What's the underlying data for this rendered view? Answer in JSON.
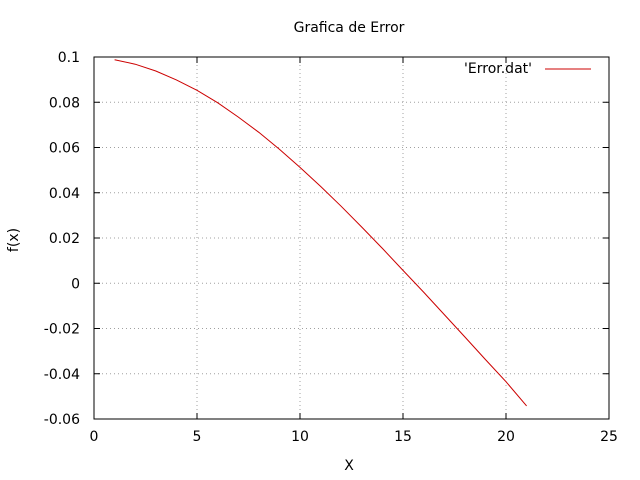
{
  "chart_data": {
    "type": "line",
    "title": "Grafica de Error",
    "xlabel": "X",
    "ylabel": "f(x)",
    "xlim": [
      0,
      25
    ],
    "ylim": [
      -0.06,
      0.1
    ],
    "grid": true,
    "legend_position": "top-right",
    "x_ticks": [
      0,
      5,
      10,
      15,
      20,
      25
    ],
    "x_tick_labels": [
      "0",
      "5",
      "10",
      "15",
      "20",
      "25"
    ],
    "y_ticks": [
      -0.06,
      -0.04,
      -0.02,
      0,
      0.02,
      0.04,
      0.06,
      0.08,
      0.1
    ],
    "y_tick_labels": [
      "-0.06",
      "-0.04",
      "-0.02",
      "0",
      "0.02",
      "0.04",
      "0.06",
      "0.08",
      "0.1"
    ],
    "series": [
      {
        "name": "'Error.dat'",
        "color": "#cc0000",
        "x": [
          1,
          2,
          3,
          4,
          5,
          6,
          7,
          8,
          9,
          10,
          11,
          12,
          13,
          14,
          15,
          16,
          17,
          18,
          19,
          20,
          21
        ],
        "y": [
          0.0988,
          0.0968,
          0.0938,
          0.0899,
          0.0853,
          0.0798,
          0.0735,
          0.0667,
          0.0592,
          0.0512,
          0.0428,
          0.034,
          0.0248,
          0.0154,
          0.0057,
          -0.0039,
          -0.0138,
          -0.0237,
          -0.0337,
          -0.0435,
          -0.0542
        ]
      }
    ]
  }
}
